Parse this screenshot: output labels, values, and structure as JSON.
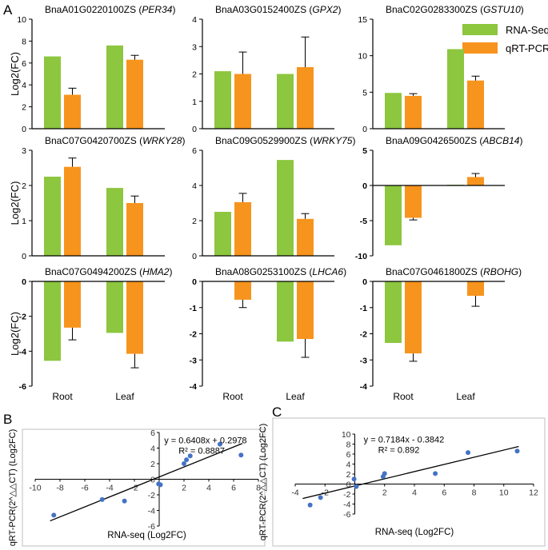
{
  "panel_labels": {
    "a": "A",
    "b": "B",
    "c": "C"
  },
  "legend": [
    {
      "name": "RNA-Seq",
      "color": "#8dc63f"
    },
    {
      "name": "qRT-PCR",
      "color": "#f7941d"
    }
  ],
  "colors": {
    "rna": "#8dc63f",
    "qpcr": "#f7941d",
    "point": "#4472c4",
    "line": "#000000"
  },
  "log2fc_label": "Log2(FC)",
  "categories": [
    "Root",
    "Leaf"
  ],
  "chart_data": [
    {
      "id": "g1",
      "type": "bar",
      "gene": "BnaA01G0220100ZS",
      "symbol": "PER34",
      "ylim": [
        0,
        10
      ],
      "yticks": [
        0,
        2,
        4,
        6,
        8,
        10
      ],
      "series": [
        {
          "name": "RNA-Seq",
          "values": [
            6.6,
            7.6
          ],
          "err": [
            0,
            0
          ]
        },
        {
          "name": "qRT-PCR",
          "values": [
            3.1,
            6.3
          ],
          "err": [
            0.6,
            0.4
          ]
        }
      ]
    },
    {
      "id": "g2",
      "type": "bar",
      "gene": "BnaA03G0152400ZS",
      "symbol": "GPX2",
      "ylim": [
        0,
        4
      ],
      "yticks": [
        0,
        1,
        2,
        3,
        4
      ],
      "series": [
        {
          "name": "RNA-Seq",
          "values": [
            2.1,
            2.0
          ],
          "err": [
            0,
            0
          ]
        },
        {
          "name": "qRT-PCR",
          "values": [
            2.0,
            2.25
          ],
          "err": [
            0.8,
            1.1
          ]
        }
      ]
    },
    {
      "id": "g3",
      "type": "bar",
      "gene": "BnaC02G0283300ZS",
      "symbol": "GSTU10",
      "ylim": [
        0,
        15
      ],
      "yticks": [
        0,
        5,
        10,
        15
      ],
      "series": [
        {
          "name": "RNA-Seq",
          "values": [
            4.9,
            10.9
          ],
          "err": [
            0,
            0
          ]
        },
        {
          "name": "qRT-PCR",
          "values": [
            4.5,
            6.6
          ],
          "err": [
            0.3,
            0.6
          ]
        }
      ]
    },
    {
      "id": "g4",
      "type": "bar",
      "gene": "BnaC07G0420700ZS",
      "symbol": "WRKY28",
      "ylim": [
        0,
        3
      ],
      "yticks": [
        0,
        1,
        2,
        3
      ],
      "series": [
        {
          "name": "RNA-Seq",
          "values": [
            2.25,
            1.93
          ],
          "err": [
            0,
            0
          ]
        },
        {
          "name": "qRT-PCR",
          "values": [
            2.53,
            1.5
          ],
          "err": [
            0.25,
            0.2
          ]
        }
      ]
    },
    {
      "id": "g5",
      "type": "bar",
      "gene": "BnaC09G0529900ZS",
      "symbol": "WRKY75",
      "ylim": [
        0,
        6
      ],
      "yticks": [
        0,
        2,
        4,
        6
      ],
      "series": [
        {
          "name": "RNA-Seq",
          "values": [
            2.5,
            5.45
          ],
          "err": [
            0,
            0
          ]
        },
        {
          "name": "qRT-PCR",
          "values": [
            3.05,
            2.1
          ],
          "err": [
            0.5,
            0.3
          ]
        }
      ]
    },
    {
      "id": "g6",
      "type": "bar",
      "gene": "BnaA09G0426500ZS",
      "symbol": "ABCB14",
      "ylim": [
        -10,
        5
      ],
      "yticks": [
        -10,
        -5,
        0,
        5
      ],
      "series": [
        {
          "name": "RNA-Seq",
          "values": [
            -8.5,
            0.1
          ],
          "err": [
            0,
            0
          ]
        },
        {
          "name": "qRT-PCR",
          "values": [
            -4.6,
            1.2
          ],
          "err": [
            0.3,
            0.5
          ]
        }
      ]
    },
    {
      "id": "g7",
      "type": "bar",
      "gene": "BnaC07G0494200ZS",
      "symbol": "HMA2",
      "ylim": [
        -6,
        0
      ],
      "yticks": [
        -6,
        -4,
        -2,
        0
      ],
      "series": [
        {
          "name": "RNA-Seq",
          "values": [
            -4.55,
            -2.95
          ],
          "err": [
            0,
            0
          ]
        },
        {
          "name": "qRT-PCR",
          "values": [
            -2.65,
            -4.15
          ],
          "err": [
            0.7,
            0.8
          ]
        }
      ]
    },
    {
      "id": "g8",
      "type": "bar",
      "gene": "BnaA08G0253100ZS",
      "symbol": "LHCA6",
      "ylim": [
        -4,
        0
      ],
      "yticks": [
        -4,
        -3,
        -2,
        -1,
        0
      ],
      "series": [
        {
          "name": "RNA-Seq",
          "values": [
            0,
            -2.3
          ],
          "err": [
            0,
            0
          ]
        },
        {
          "name": "qRT-PCR",
          "values": [
            -0.7,
            -2.2
          ],
          "err": [
            0.3,
            0.7
          ]
        }
      ]
    },
    {
      "id": "g9",
      "type": "bar",
      "gene": "BnaC07G0461800ZS",
      "symbol": "RBOHG",
      "ylim": [
        -4,
        0
      ],
      "yticks": [
        -4,
        -3,
        -2,
        -1,
        0
      ],
      "series": [
        {
          "name": "RNA-Seq",
          "values": [
            -2.35,
            0
          ],
          "err": [
            0,
            0
          ]
        },
        {
          "name": "qRT-PCR",
          "values": [
            -2.75,
            -0.55
          ],
          "err": [
            0.3,
            0.4
          ]
        }
      ]
    },
    {
      "id": "sB",
      "type": "scatter",
      "xlim": [
        -10,
        8
      ],
      "ylim": [
        -6,
        6
      ],
      "xticks": [
        -10,
        -8,
        -6,
        -4,
        -2,
        0,
        2,
        4,
        6,
        8
      ],
      "yticks": [
        -6,
        -4,
        -2,
        0,
        2,
        4,
        6
      ],
      "xlabel": "RNA-seq (Log2FC)",
      "ylabel": "qRT-PCR(2^△△CT) (Log2FC)",
      "equation": "y = 0.6408x + 0.2978",
      "r2": "R² = 0.8887",
      "fit": {
        "slope": 0.6408,
        "intercept": 0.2978,
        "x_range": [
          -8.8,
          6.7
        ]
      },
      "points": [
        [
          -8.5,
          -4.6
        ],
        [
          -4.6,
          -2.6
        ],
        [
          -2.8,
          -2.8
        ],
        [
          -0.05,
          -0.6
        ],
        [
          0.1,
          -0.7
        ],
        [
          2.0,
          2.0
        ],
        [
          2.2,
          2.5
        ],
        [
          2.5,
          3.0
        ],
        [
          4.9,
          4.5
        ],
        [
          6.6,
          3.1
        ]
      ]
    },
    {
      "id": "sC",
      "type": "scatter",
      "xlim": [
        -4,
        12
      ],
      "ylim": [
        -6,
        10
      ],
      "xticks": [
        -4,
        -2,
        0,
        2,
        4,
        6,
        8,
        10,
        12
      ],
      "yticks": [
        -6,
        -4,
        -2,
        0,
        2,
        4,
        6,
        8,
        10
      ],
      "xlabel": "RNA-seq (Log2FC)",
      "ylabel": "qRT-PCR(2^△△CT) (Log2FC)",
      "equation": "y = 0.7184x - 0.3842",
      "r2": "R² = 0.892",
      "fit": {
        "slope": 0.7184,
        "intercept": -0.3842,
        "x_range": [
          -3.5,
          11
        ]
      },
      "points": [
        [
          -3.0,
          -4.2
        ],
        [
          -2.3,
          -2.7
        ],
        [
          -0.05,
          1.0
        ],
        [
          0.1,
          -0.5
        ],
        [
          1.9,
          1.5
        ],
        [
          2.0,
          2.1
        ],
        [
          5.4,
          2.1
        ],
        [
          7.6,
          6.3
        ],
        [
          10.9,
          6.6
        ]
      ]
    }
  ]
}
